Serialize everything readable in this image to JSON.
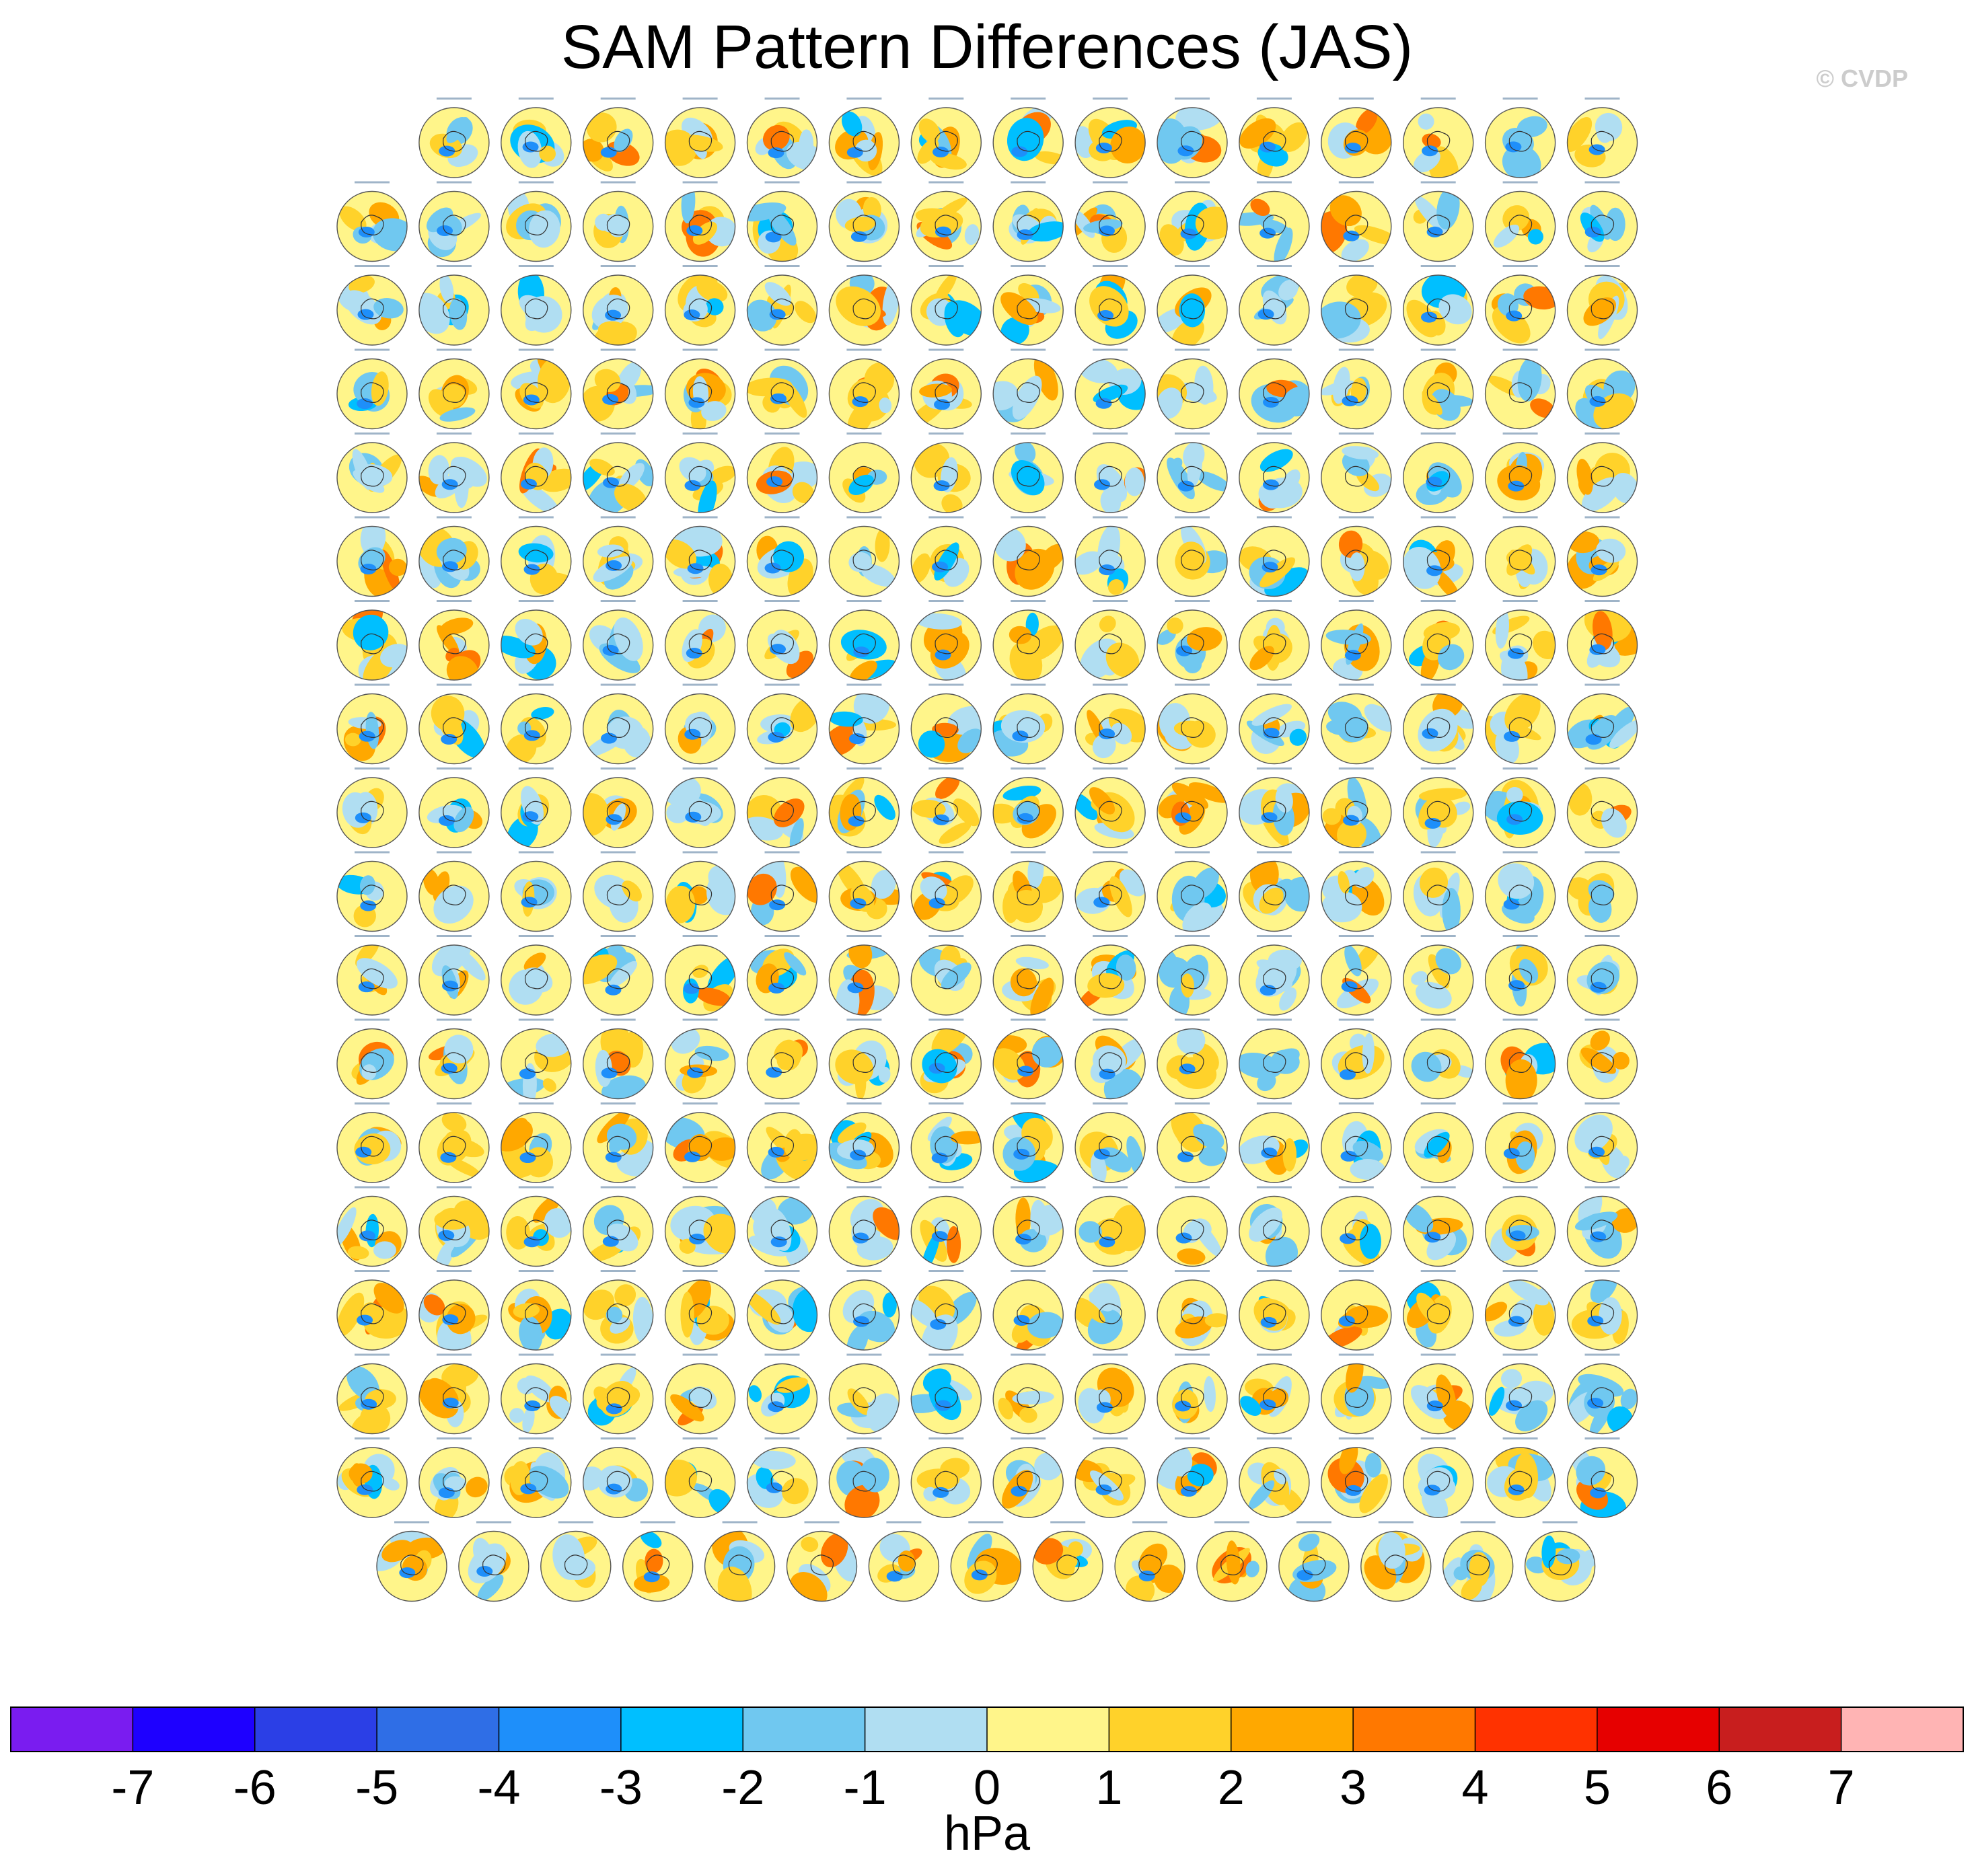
{
  "title": "SAM Pattern Differences (JAS)",
  "watermark": "© CVDP",
  "chart_data": {
    "type": "heatmap",
    "title": "SAM Pattern Differences (JAS)",
    "description_panels": "grid of small south polar stereographic maps",
    "grid": {
      "rows": [
        15,
        16,
        16,
        16,
        16,
        16,
        16,
        16,
        16,
        16,
        16,
        16,
        16,
        16,
        16,
        16,
        16,
        15
      ]
    },
    "colorbar": {
      "units": "hPa",
      "ticks": [
        "-7",
        "-6",
        "-5",
        "-4",
        "-3",
        "-2",
        "-1",
        "0",
        "1",
        "2",
        "3",
        "4",
        "5",
        "6",
        "7"
      ],
      "colors": [
        "#7a1cf0",
        "#1e00ff",
        "#2b3fe6",
        "#2f6ee6",
        "#1e8ffa",
        "#00bfff",
        "#70c8f0",
        "#b0def2",
        "#fff58a",
        "#ffd22a",
        "#ffa800",
        "#ff7800",
        "#ff3200",
        "#e60000",
        "#c81e1e",
        "#ffb4b4"
      ]
    }
  }
}
